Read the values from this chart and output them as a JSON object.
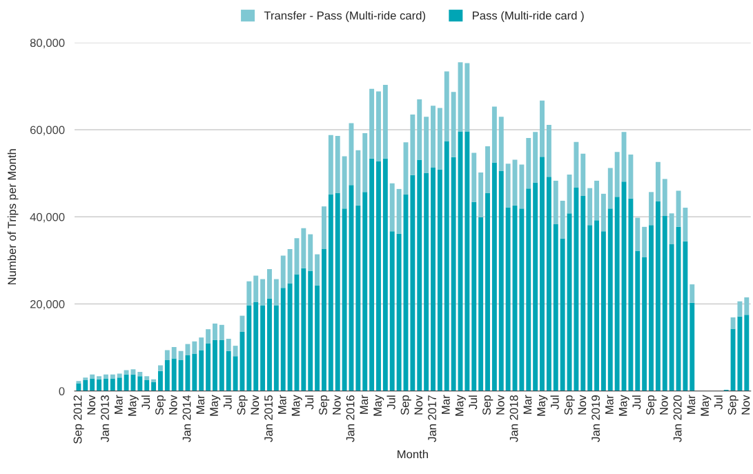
{
  "chart_data": {
    "type": "bar",
    "stacked": true,
    "xlabel": "Month",
    "ylabel": "Number of Trips per Month",
    "categories": [
      "Sep 2012",
      null,
      "Nov",
      null,
      "Jan 2013",
      null,
      "Mar",
      null,
      "May",
      null,
      "Jul",
      null,
      "Sep",
      null,
      "Nov",
      null,
      "Jan 2014",
      null,
      "Mar",
      null,
      "May",
      null,
      "Jul",
      null,
      "Sep",
      null,
      "Nov",
      null,
      "Jan 2015",
      null,
      "Mar",
      null,
      "May",
      null,
      "Jul",
      null,
      "Sep",
      null,
      "Nov",
      null,
      "Jan 2016",
      null,
      "Mar",
      null,
      "May",
      null,
      "Jul",
      null,
      "Sep",
      null,
      "Nov",
      null,
      "Jan 2017",
      null,
      "Mar",
      null,
      "May",
      null,
      "Jul",
      null,
      "Sep",
      null,
      "Nov",
      null,
      "Jan 2018",
      null,
      "Mar",
      null,
      "May",
      null,
      "Jul",
      null,
      "Sep",
      null,
      "Nov",
      null,
      "Jan 2019",
      null,
      "Mar",
      null,
      "May",
      null,
      "Jul",
      null,
      "Sep",
      null,
      "Nov",
      null,
      "Jan 2020",
      null,
      "Mar",
      null,
      "May",
      null,
      "Jul",
      null,
      "Sep",
      null,
      "Nov"
    ],
    "series": [
      {
        "name": "Pass (Multi-ride card )",
        "color": "#00a5b5",
        "values": [
          1800,
          2500,
          2900,
          2700,
          2900,
          2900,
          3100,
          3800,
          3800,
          3400,
          2500,
          2100,
          4600,
          7100,
          7500,
          7100,
          8200,
          8600,
          9400,
          10900,
          11700,
          11700,
          9200,
          8000,
          13600,
          19700,
          20500,
          19700,
          21200,
          19700,
          23700,
          24700,
          26800,
          28200,
          27600,
          24300,
          32600,
          45200,
          45500,
          41900,
          47300,
          42600,
          45700,
          53400,
          52800,
          53400,
          36700,
          36100,
          45100,
          49600,
          53100,
          50100,
          51300,
          50900,
          57400,
          53700,
          59600,
          59600,
          43400,
          39900,
          45500,
          52500,
          50500,
          42200,
          42600,
          41900,
          46500,
          47900,
          53800,
          49200,
          38300,
          35000,
          40800,
          46700,
          44800,
          38100,
          39200,
          36700,
          41900,
          44600,
          48100,
          44200,
          32200,
          30700,
          38100,
          43600,
          40200,
          33700,
          37700,
          34400,
          20300,
          0,
          0,
          0,
          0,
          300,
          14300,
          17100,
          17500
        ]
      },
      {
        "name": "Transfer - Pass (Multi-ride card)",
        "color": "#7fc8d3",
        "values": [
          500,
          600,
          900,
          700,
          900,
          900,
          900,
          1000,
          1200,
          1000,
          900,
          600,
          1300,
          2300,
          2600,
          2100,
          2600,
          2800,
          2900,
          3300,
          3800,
          3500,
          2800,
          2400,
          3700,
          5500,
          6000,
          6000,
          6800,
          6000,
          7400,
          7900,
          8300,
          9200,
          8400,
          7100,
          9800,
          13600,
          13100,
          12000,
          14200,
          12700,
          13500,
          16000,
          16000,
          16900,
          11000,
          10300,
          12000,
          13900,
          13900,
          12900,
          14200,
          14100,
          16000,
          15000,
          15900,
          15700,
          11300,
          10300,
          10700,
          12800,
          12500,
          10000,
          10500,
          10100,
          11600,
          11600,
          12900,
          11900,
          10000,
          8700,
          8900,
          10500,
          9700,
          8500,
          9100,
          8600,
          9300,
          10300,
          11400,
          10100,
          7600,
          7000,
          7600,
          9000,
          8500,
          7100,
          8300,
          7700,
          4200,
          0,
          0,
          0,
          0,
          0,
          2600,
          3500,
          4000
        ]
      }
    ],
    "ylim": [
      0,
      80000
    ],
    "yticks": [
      {
        "value": 0,
        "label": "0"
      },
      {
        "value": 20000,
        "label": "20,000"
      },
      {
        "value": 40000,
        "label": "40,000"
      },
      {
        "value": 60000,
        "label": "60,000"
      },
      {
        "value": 80000,
        "label": "80,000"
      }
    ],
    "grid": "y",
    "legend": "top"
  }
}
